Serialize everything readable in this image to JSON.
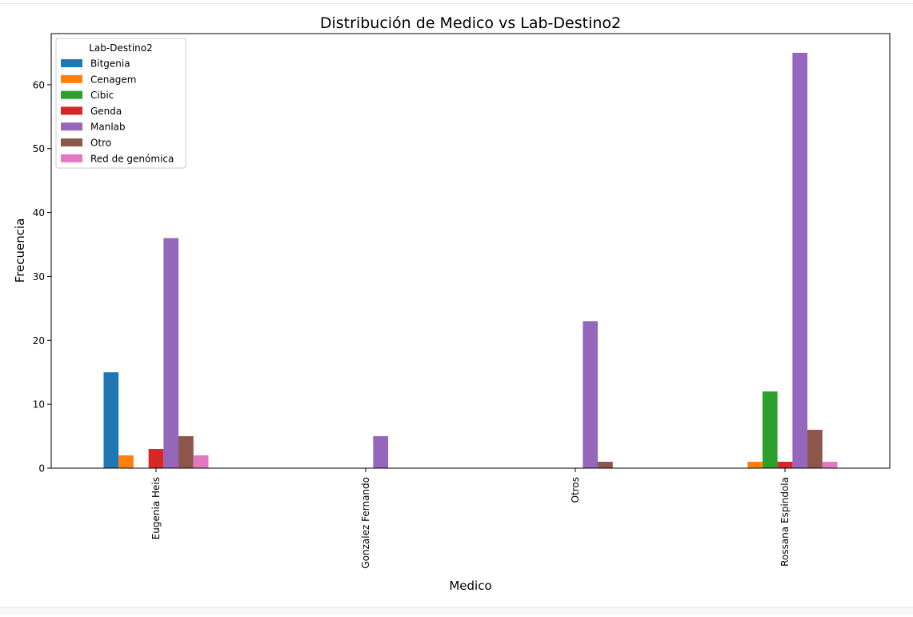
{
  "chart_data": {
    "type": "bar",
    "title": "Distribución de Medico vs Lab-Destino2",
    "xlabel": "Medico",
    "ylabel": "Frecuencia",
    "ylim": [
      0,
      68
    ],
    "yticks": [
      0,
      10,
      20,
      30,
      40,
      50,
      60
    ],
    "grid": false,
    "legend": {
      "title": "Lab-Destino2",
      "placement": "top-left"
    },
    "categories": [
      "Eugenia Heis",
      "Gonzalez Fernando",
      "Otros",
      "Rossana Espindola"
    ],
    "series": [
      {
        "name": "Bitgenia",
        "color": "#1f77b4",
        "values": [
          15,
          0,
          0,
          0
        ]
      },
      {
        "name": "Cenagem",
        "color": "#ff7f0e",
        "values": [
          2,
          0,
          0,
          1
        ]
      },
      {
        "name": "Cibic",
        "color": "#2ca02c",
        "values": [
          0,
          0,
          0,
          12
        ]
      },
      {
        "name": "Genda",
        "color": "#d62728",
        "values": [
          3,
          0,
          0,
          1
        ]
      },
      {
        "name": "Manlab",
        "color": "#9467bd",
        "values": [
          36,
          5,
          23,
          65
        ]
      },
      {
        "name": "Otro",
        "color": "#8c564b",
        "values": [
          5,
          0,
          1,
          6
        ]
      },
      {
        "name": "Red de genómica",
        "color": "#e377c2",
        "values": [
          2,
          0,
          0,
          1
        ]
      }
    ]
  }
}
